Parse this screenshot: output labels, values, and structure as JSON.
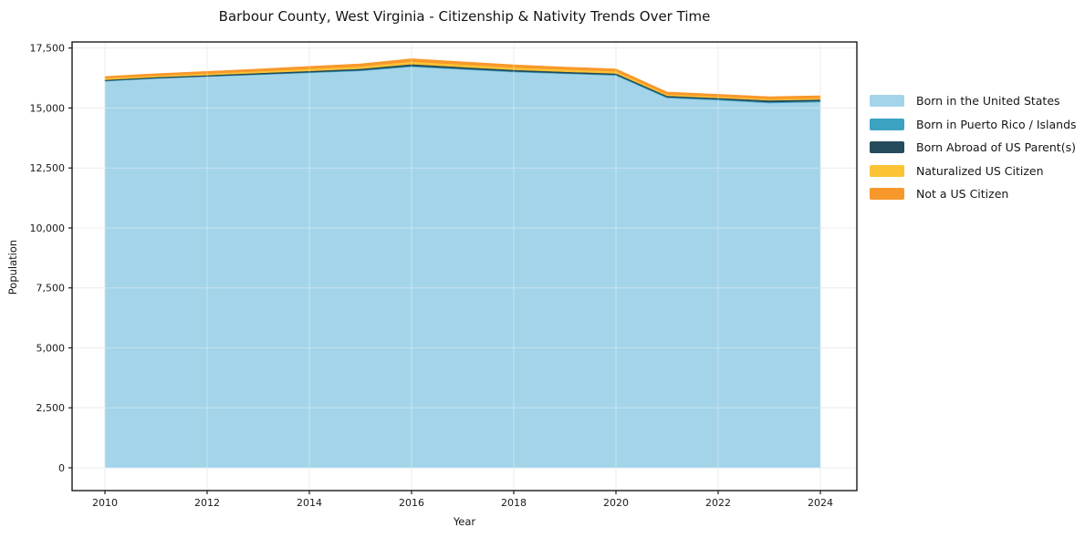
{
  "chart_data": {
    "type": "area",
    "stacked": true,
    "title": "Barbour County, West Virginia - Citizenship & Nativity Trends Over Time",
    "xlabel": "Year",
    "ylabel": "Population",
    "x": [
      2010,
      2011,
      2012,
      2013,
      2014,
      2015,
      2016,
      2017,
      2018,
      2019,
      2020,
      2021,
      2022,
      2023,
      2024
    ],
    "series": [
      {
        "name": "Born in the United States",
        "color": "#a4d4e9",
        "values": [
          16120,
          16230,
          16310,
          16390,
          16470,
          16550,
          16720,
          16610,
          16500,
          16430,
          16360,
          15420,
          15330,
          15210,
          15250
        ]
      },
      {
        "name": "Born in Puerto Rico / Islands",
        "color": "#3ba2c2",
        "values": [
          15,
          15,
          15,
          20,
          20,
          25,
          35,
          30,
          30,
          25,
          25,
          35,
          35,
          40,
          40
        ]
      },
      {
        "name": "Born Abroad of US Parent(s)",
        "color": "#254b5c",
        "values": [
          45,
          45,
          50,
          55,
          60,
          65,
          75,
          70,
          65,
          60,
          60,
          55,
          60,
          70,
          70
        ]
      },
      {
        "name": "Naturalized US Citizen",
        "color": "#fcc335",
        "values": [
          60,
          60,
          65,
          70,
          85,
          95,
          110,
          105,
          100,
          95,
          90,
          60,
          55,
          55,
          55
        ]
      },
      {
        "name": "Not a US Citizen",
        "color": "#f8982b",
        "values": [
          75,
          80,
          85,
          90,
          100,
          105,
          115,
          110,
          105,
          100,
          95,
          95,
          90,
          95,
          95
        ]
      }
    ],
    "xticks": [
      2010,
      2012,
      2014,
      2016,
      2018,
      2020,
      2022,
      2024
    ],
    "yticks": [
      {
        "value": 0,
        "label": "0"
      },
      {
        "value": 2500,
        "label": "2,500"
      },
      {
        "value": 5000,
        "label": "5,000"
      },
      {
        "value": 7500,
        "label": "7,500"
      },
      {
        "value": 10000,
        "label": "10,000"
      },
      {
        "value": 12500,
        "label": "12,500"
      },
      {
        "value": 15000,
        "label": "15,000"
      },
      {
        "value": 17500,
        "label": "17,500"
      }
    ],
    "xlim": [
      2009.36,
      2024.71
    ],
    "ylim": [
      -950,
      17750
    ],
    "grid": true,
    "legend_position": "right-outside"
  }
}
